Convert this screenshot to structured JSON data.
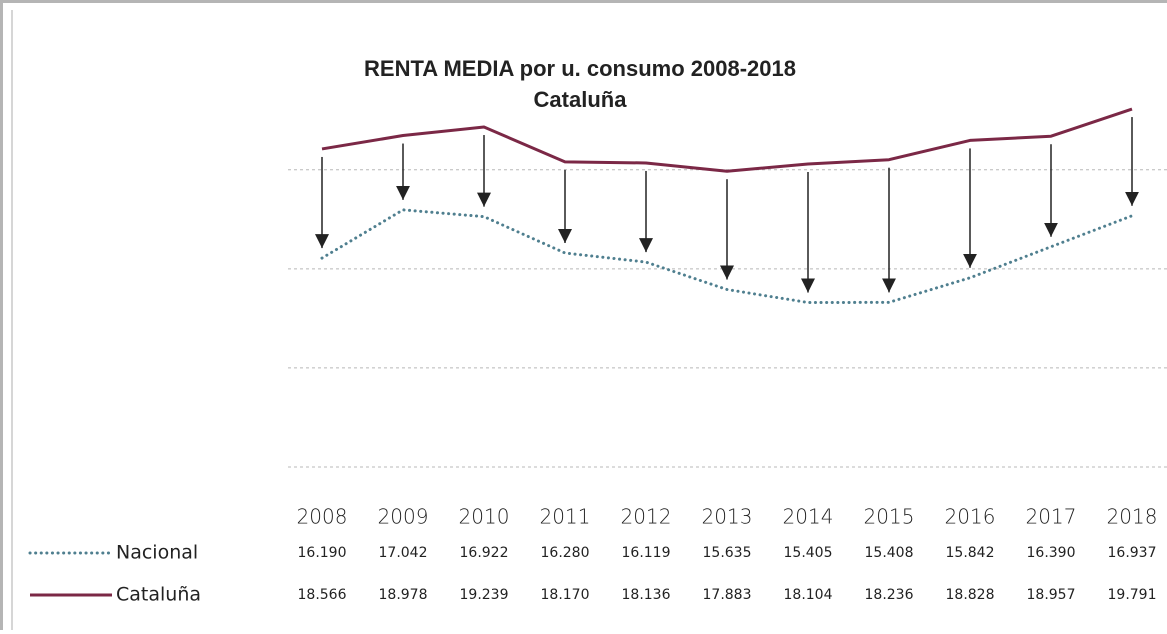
{
  "chart_data": {
    "type": "line",
    "title": "RENTA MEDIA por u. consumo 2008-2018",
    "subtitle": "Cataluña",
    "categories": [
      "2008",
      "2009",
      "2010",
      "2011",
      "2012",
      "2013",
      "2014",
      "2015",
      "2016",
      "2017",
      "2018"
    ],
    "series": [
      {
        "name": "Nacional",
        "color": "#4f7f8f",
        "dash": "dotted",
        "values": [
          16190,
          17042,
          16922,
          16280,
          16119,
          15635,
          15405,
          15408,
          15842,
          16390,
          16937
        ],
        "value_labels": [
          "16.190",
          "17.042",
          "16.922",
          "16.280",
          "16.119",
          "15.635",
          "15.405",
          "15.408",
          "15.842",
          "16.390",
          "16.937"
        ]
      },
      {
        "name": "Cataluña",
        "color": "#7b2846",
        "dash": "solid",
        "axis": "y2",
        "values": [
          18566,
          18978,
          19239,
          18170,
          18136,
          17883,
          18104,
          18236,
          18828,
          18957,
          19791
        ],
        "value_labels": [
          "18.566",
          "18.978",
          "19.239",
          "18.170",
          "18.136",
          "17.883",
          "18.104",
          "18.236",
          "18.828",
          "18.957",
          "19.791"
        ]
      }
    ],
    "ylim": [
      12500,
      19000
    ],
    "yticks": [
      12500,
      14250,
      16000,
      17750
    ],
    "y2lim": [
      8800,
      20100
    ],
    "grid": true
  }
}
